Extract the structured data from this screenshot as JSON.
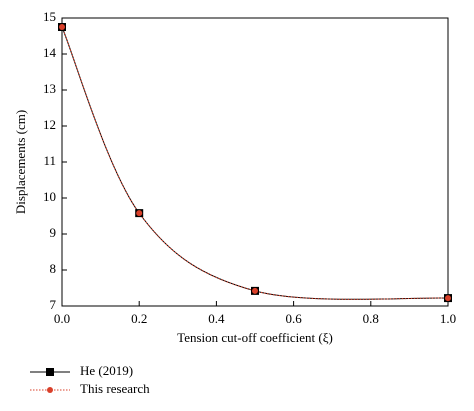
{
  "chart_data": {
    "type": "line",
    "x_label": "Tension cut-off coefficient (ξ)",
    "y_label": "Displacements (cm)",
    "x": [
      0,
      0.2,
      0.5,
      1.0
    ],
    "series": [
      {
        "name": "He (2019)",
        "color": "#000000",
        "values": [
          14.75,
          9.58,
          7.42,
          7.22
        ]
      },
      {
        "name": "This research",
        "color": "#d9402a",
        "values": [
          14.75,
          9.58,
          7.42,
          7.22
        ]
      }
    ],
    "xlim": [
      0,
      1.0
    ],
    "xticks": [
      {
        "value": 0,
        "label": "0.0"
      },
      0.2,
      0.4,
      0.6,
      0.8,
      {
        "value": 1.0,
        "label": "1.0"
      }
    ],
    "ylim": [
      7,
      15
    ],
    "yticks": [
      7,
      8,
      9,
      10,
      11,
      12,
      13,
      14,
      15
    ]
  }
}
